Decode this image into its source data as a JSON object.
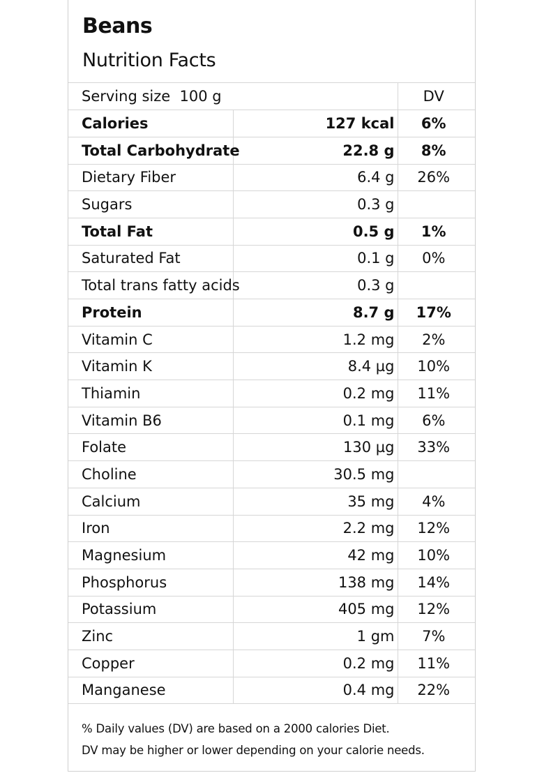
{
  "header": {
    "title": "Beans",
    "subtitle": "Nutrition Facts"
  },
  "serving": {
    "label": "Serving size  100 g",
    "dv_header": "DV"
  },
  "rows": [
    {
      "name": "Calories",
      "amount": "127 kcal",
      "dv": "6%",
      "bold": true
    },
    {
      "name": "Total Carbohydrate",
      "amount": "22.8 g",
      "dv": "8%",
      "bold": true
    },
    {
      "name": "Dietary Fiber",
      "amount": "6.4 g",
      "dv": "26%",
      "bold": false
    },
    {
      "name": "Sugars",
      "amount": "0.3 g",
      "dv": "",
      "bold": false
    },
    {
      "name": "Total Fat",
      "amount": "0.5 g",
      "dv": "1%",
      "bold": true
    },
    {
      "name": "Saturated Fat",
      "amount": "0.1 g",
      "dv": "0%",
      "bold": false
    },
    {
      "name": "Total trans fatty acids",
      "amount": "0.3 g",
      "dv": "",
      "bold": false
    },
    {
      "name": "Protein",
      "amount": "8.7 g",
      "dv": "17%",
      "bold": true
    },
    {
      "name": "Vitamin C",
      "amount": "1.2 mg",
      "dv": "2%",
      "bold": false
    },
    {
      "name": "Vitamin K",
      "amount": "8.4 µg",
      "dv": "10%",
      "bold": false
    },
    {
      "name": "Thiamin",
      "amount": "0.2 mg",
      "dv": "11%",
      "bold": false
    },
    {
      "name": "Vitamin B6",
      "amount": "0.1 mg",
      "dv": "6%",
      "bold": false
    },
    {
      "name": "Folate",
      "amount": "130 µg",
      "dv": "33%",
      "bold": false
    },
    {
      "name": "Choline",
      "amount": "30.5 mg",
      "dv": "",
      "bold": false
    },
    {
      "name": "Calcium",
      "amount": "35 mg",
      "dv": "4%",
      "bold": false
    },
    {
      "name": "Iron",
      "amount": "2.2 mg",
      "dv": "12%",
      "bold": false
    },
    {
      "name": "Magnesium",
      "amount": "42 mg",
      "dv": "10%",
      "bold": false
    },
    {
      "name": "Phosphorus",
      "amount": "138 mg",
      "dv": "14%",
      "bold": false
    },
    {
      "name": "Potassium",
      "amount": "405 mg",
      "dv": "12%",
      "bold": false
    },
    {
      "name": "Zinc",
      "amount": "1 gm",
      "dv": "7%",
      "bold": false
    },
    {
      "name": "Copper",
      "amount": "0.2 mg",
      "dv": "11%",
      "bold": false
    },
    {
      "name": "Manganese",
      "amount": "0.4 mg",
      "dv": "22%",
      "bold": false
    }
  ],
  "footer": {
    "line1": "% Daily values (DV) are based on a 2000 calories Diet.",
    "line2": "DV may be higher or lower depending on your calorie needs."
  }
}
